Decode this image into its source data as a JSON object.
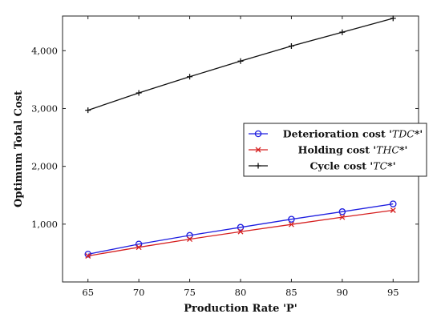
{
  "chart_data": {
    "type": "line",
    "xlabel": "Production Rate 'P'",
    "ylabel": "Optimum Total Cost",
    "xlim": [
      62.5,
      97.5
    ],
    "ylim": [
      0,
      4600
    ],
    "x": [
      65,
      70,
      75,
      80,
      85,
      90,
      95
    ],
    "xticks": [
      65,
      70,
      75,
      80,
      85,
      90,
      95
    ],
    "yticks": [
      1000,
      2000,
      3000,
      4000
    ],
    "ytick_labels": [
      "1,000",
      "2,000",
      "3,000",
      "4,000"
    ],
    "legend_position": "right",
    "series": [
      {
        "name": "Deterioration cost 'TDC*'",
        "label_plain": "Deterioration cost '",
        "label_math": "TDC",
        "label_tail": "*'",
        "color": "#1f1fe0",
        "marker": "circle",
        "values": [
          480,
          655,
          805,
          945,
          1085,
          1215,
          1350
        ]
      },
      {
        "name": "Holding cost 'THC*'",
        "label_plain": "Holding cost '",
        "label_math": "THC",
        "label_tail": "*'",
        "color": "#d62020",
        "marker": "x",
        "values": [
          450,
          600,
          740,
          870,
          995,
          1120,
          1240
        ]
      },
      {
        "name": "Cycle cost 'TC*'",
        "label_plain": "Cycle cost '",
        "label_math": "TC",
        "label_tail": "*'",
        "color": "#111111",
        "marker": "plus",
        "values": [
          2970,
          3270,
          3550,
          3820,
          4080,
          4320,
          4560
        ]
      }
    ]
  }
}
